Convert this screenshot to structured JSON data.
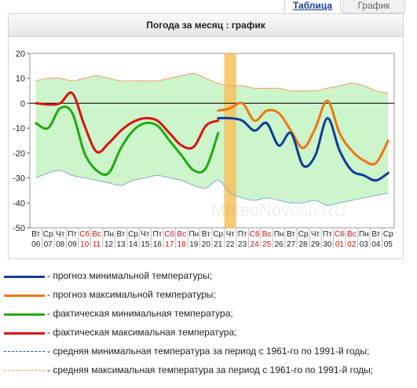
{
  "tabs": [
    {
      "label": "Таблица",
      "active": true
    },
    {
      "label": "График",
      "active": false
    }
  ],
  "chart_data": {
    "type": "line",
    "title": "Погода за месяц : график",
    "ylim": [
      -50,
      20
    ],
    "yticks": [
      20,
      10,
      0,
      -10,
      -20,
      -30,
      -40,
      -50
    ],
    "grid": false,
    "highlight_day_index": 16,
    "categories": [
      {
        "dow": "Вт",
        "day": "06",
        "weekend": false
      },
      {
        "dow": "Ср",
        "day": "07",
        "weekend": false
      },
      {
        "dow": "Чт",
        "day": "08",
        "weekend": false
      },
      {
        "dow": "Пт",
        "day": "09",
        "weekend": false
      },
      {
        "dow": "Сб",
        "day": "10",
        "weekend": true
      },
      {
        "dow": "Вс",
        "day": "11",
        "weekend": true
      },
      {
        "dow": "Пн",
        "day": "12",
        "weekend": false
      },
      {
        "dow": "Вт",
        "day": "13",
        "weekend": false
      },
      {
        "dow": "Ср",
        "day": "14",
        "weekend": false
      },
      {
        "dow": "Чт",
        "day": "15",
        "weekend": false
      },
      {
        "dow": "Пт",
        "day": "16",
        "weekend": false
      },
      {
        "dow": "Сб",
        "day": "17",
        "weekend": true
      },
      {
        "dow": "Вс",
        "day": "18",
        "weekend": true
      },
      {
        "dow": "Пн",
        "day": "19",
        "weekend": false
      },
      {
        "dow": "Вт",
        "day": "20",
        "weekend": false
      },
      {
        "dow": "Ср",
        "day": "21",
        "weekend": false
      },
      {
        "dow": "Чт",
        "day": "22",
        "weekend": false
      },
      {
        "dow": "Пт",
        "day": "23",
        "weekend": false
      },
      {
        "dow": "Сб",
        "day": "24",
        "weekend": true
      },
      {
        "dow": "Вс",
        "day": "25",
        "weekend": true
      },
      {
        "dow": "Пн",
        "day": "26",
        "weekend": false
      },
      {
        "dow": "Вт",
        "day": "27",
        "weekend": false
      },
      {
        "dow": "Ср",
        "day": "28",
        "weekend": false
      },
      {
        "dow": "Чт",
        "day": "29",
        "weekend": false
      },
      {
        "dow": "Пт",
        "day": "30",
        "weekend": false
      },
      {
        "dow": "Сб",
        "day": "01",
        "weekend": true
      },
      {
        "dow": "Вс",
        "day": "02",
        "weekend": true
      },
      {
        "dow": "Пн",
        "day": "03",
        "weekend": false
      },
      {
        "dow": "Вт",
        "day": "04",
        "weekend": false
      },
      {
        "dow": "Ср",
        "day": "05",
        "weekend": false
      }
    ],
    "band": {
      "upper": [
        9,
        10,
        10,
        9,
        10,
        11,
        10,
        9,
        9,
        9,
        9,
        10,
        11,
        12,
        10,
        8,
        7,
        7,
        6,
        6,
        6,
        5,
        5,
        5,
        6,
        7,
        8,
        7,
        5,
        4
      ],
      "lower": [
        -30,
        -28,
        -27,
        -29,
        -30,
        -31,
        -32,
        -33,
        -31,
        -30,
        -29,
        -30,
        -31,
        -33,
        -34,
        -31,
        -36,
        -38,
        -39,
        -38,
        -39,
        -40,
        -40,
        -39,
        -41,
        -40,
        -39,
        -38,
        -37,
        -36
      ],
      "fill": "#ccf5cc"
    },
    "series": [
      {
        "key": "fact_max",
        "color": "#dd1111",
        "width": 3,
        "values": [
          0,
          -0.5,
          0,
          4,
          -9,
          -19.5,
          -16,
          -11,
          -7.5,
          -6,
          -7,
          -12,
          -17,
          -17.5,
          -9,
          -7,
          null,
          null,
          null,
          null,
          null,
          null,
          null,
          null,
          null,
          null,
          null,
          null,
          null,
          null
        ]
      },
      {
        "key": "fact_min",
        "color": "#22aa11",
        "width": 3,
        "values": [
          -8,
          -10,
          -2,
          -4,
          -20,
          -27,
          -28,
          -18,
          -11,
          -8,
          -9,
          -15,
          -21,
          -27,
          -26,
          -12,
          null,
          null,
          null,
          null,
          null,
          null,
          null,
          null,
          null,
          null,
          null,
          null,
          null,
          null
        ]
      },
      {
        "key": "fc_max",
        "color": "#ee7711",
        "width": 3,
        "values": [
          null,
          null,
          null,
          null,
          null,
          null,
          null,
          null,
          null,
          null,
          null,
          null,
          null,
          null,
          null,
          -3,
          -2,
          0,
          -7,
          -3,
          -4,
          -11,
          -18,
          -10,
          1,
          -12,
          -19,
          -23,
          -24,
          -15
        ]
      },
      {
        "key": "fc_min",
        "color": "#113d99",
        "width": 3,
        "values": [
          null,
          null,
          null,
          null,
          null,
          null,
          null,
          null,
          null,
          null,
          null,
          null,
          null,
          null,
          null,
          -6,
          -6,
          -7,
          -11,
          -8,
          -17,
          -12,
          -25,
          -21,
          -6,
          -19,
          -27,
          -29,
          -31,
          -28
        ]
      },
      {
        "key": "norm_max",
        "color": "#f0a060",
        "width": 1,
        "values": "band.upper"
      },
      {
        "key": "norm_min",
        "color": "#88a8d0",
        "width": 1,
        "values": "band.lower"
      }
    ],
    "watermark": "MeteoNovosti.RU"
  },
  "legend": [
    {
      "label": "- прогноз минимальной температуры;",
      "color": "#113d99",
      "style": "solid"
    },
    {
      "label": "- прогноз максимальной температуры;",
      "color": "#ee7711",
      "style": "solid"
    },
    {
      "label": "- фактическая минимальная температура;",
      "color": "#22aa11",
      "style": "solid"
    },
    {
      "label": "- фактическая максимальная температура;",
      "color": "#dd1111",
      "style": "solid"
    },
    {
      "label": "- средняя минимальная температура за период с 1961-го по 1991-й годы;",
      "color": "#2255aa",
      "style": "dashed"
    },
    {
      "label": "- средняя максимальная температура за период с 1961-го по 1991-й годы;",
      "color": "#f0a060",
      "style": "dashed"
    }
  ]
}
